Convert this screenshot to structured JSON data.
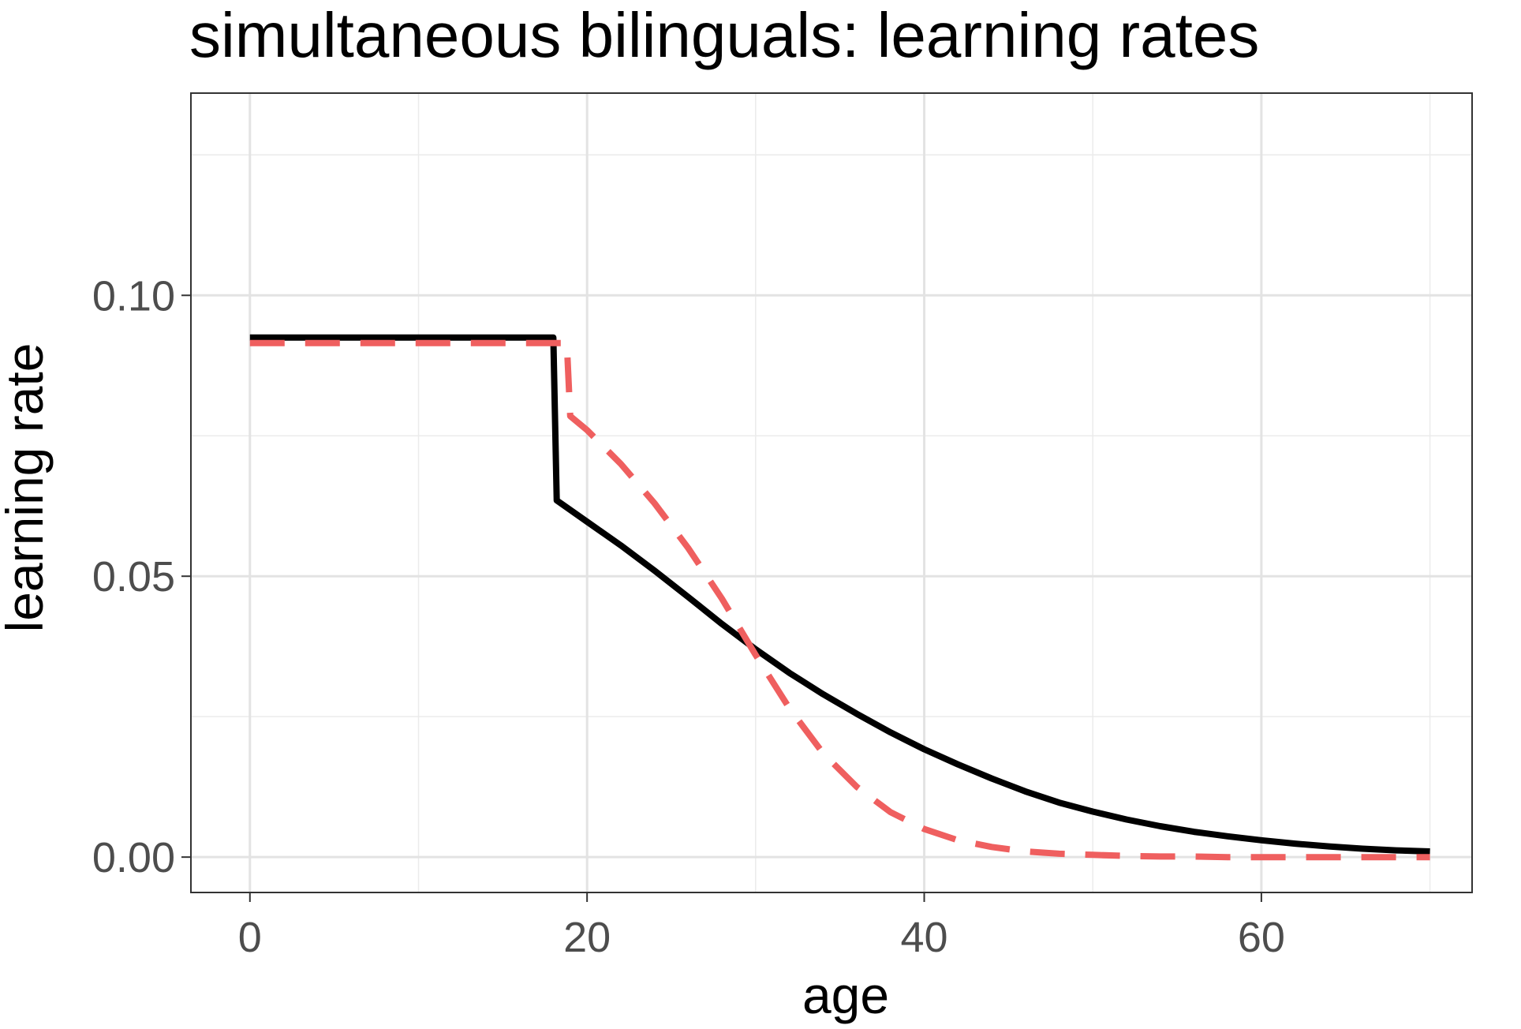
{
  "chart_data": {
    "type": "line",
    "title": "simultaneous bilinguals: learning rates",
    "xlabel": "age",
    "ylabel": "learning rate",
    "xlim": [
      -3.5,
      72.5
    ],
    "ylim": [
      -0.0063,
      0.136
    ],
    "x_ticks": [
      0,
      20,
      40,
      60
    ],
    "x_tick_labels": [
      "0",
      "20",
      "40",
      "60"
    ],
    "y_ticks": [
      0.0,
      0.05,
      0.1
    ],
    "y_tick_labels": [
      "0.00",
      "0.05",
      "0.10"
    ],
    "grid": true,
    "legend": "none",
    "series": [
      {
        "color": "#000000",
        "style": "solid",
        "x": [
          0,
          18,
          18.2,
          20,
          22,
          24,
          26,
          28,
          30,
          32,
          34,
          36,
          38,
          40,
          42,
          44,
          46,
          48,
          50,
          52,
          54,
          56,
          58,
          60,
          62,
          64,
          66,
          68,
          70
        ],
        "y": [
          0.0925,
          0.0925,
          0.0635,
          0.0597,
          0.0555,
          0.051,
          0.0463,
          0.0415,
          0.037,
          0.0328,
          0.029,
          0.0255,
          0.0222,
          0.0192,
          0.0165,
          0.014,
          0.0117,
          0.0097,
          0.0081,
          0.0067,
          0.0055,
          0.0045,
          0.0037,
          0.003,
          0.0024,
          0.0019,
          0.0015,
          0.0012,
          0.001
        ]
      },
      {
        "color": "#ef5f5f",
        "style": "dashed",
        "x": [
          0,
          18.8,
          19.0,
          20,
          22,
          24,
          26,
          28,
          30,
          32,
          34,
          36,
          38,
          40,
          42,
          44,
          46,
          48,
          50,
          52,
          54,
          56,
          58,
          60,
          62,
          64,
          66,
          68,
          70
        ],
        "y": [
          0.0915,
          0.0915,
          0.0785,
          0.076,
          0.07,
          0.063,
          0.055,
          0.046,
          0.036,
          0.0265,
          0.0185,
          0.0125,
          0.008,
          0.005,
          0.003,
          0.0018,
          0.001,
          0.0006,
          0.0004,
          0.0002,
          0.0001,
          0.0001,
          0.0,
          0.0,
          0.0,
          0.0,
          0.0,
          0.0,
          0.0
        ]
      }
    ]
  }
}
